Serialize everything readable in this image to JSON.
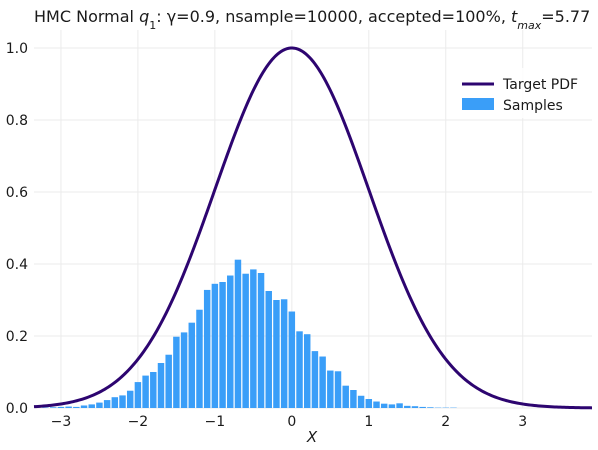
{
  "chart_data": {
    "type": "bar",
    "title": {
      "prefix": "HMC Normal ",
      "q_base": "q",
      "q_sub": "1",
      "mid": ": γ=0.9, nsample=10000, accepted=100%, ",
      "t_base": "t",
      "t_sub": "max",
      "suffix": "=5.77"
    },
    "xlabel": "X",
    "ylabel": "",
    "xlim": [
      -3.35,
      3.9
    ],
    "ylim": [
      0,
      1.05
    ],
    "xticks": [
      -3,
      -2,
      -1,
      0,
      1,
      2,
      3
    ],
    "xtick_labels": [
      "−3",
      "−2",
      "−1",
      "0",
      "1",
      "2",
      "3"
    ],
    "yticks": [
      0.0,
      0.2,
      0.4,
      0.6,
      0.8,
      1.0
    ],
    "ytick_labels": [
      "0.0",
      "0.2",
      "0.4",
      "0.6",
      "0.8",
      "1.0"
    ],
    "grid": true,
    "legend_position": "top-right",
    "series": [
      {
        "name": "Target PDF",
        "kind": "line",
        "color": "#2d0570",
        "formula": "exp(-x^2/2)",
        "x_range": [
          -3.35,
          3.9
        ]
      },
      {
        "name": "Samples",
        "kind": "bar",
        "color": "#3a9ef8",
        "bin_width": 0.1,
        "bin_centers": [
          -3.2,
          -3.1,
          -3.0,
          -2.9,
          -2.8,
          -2.7,
          -2.6,
          -2.5,
          -2.4,
          -2.3,
          -2.2,
          -2.1,
          -2.0,
          -1.9,
          -1.8,
          -1.7,
          -1.6,
          -1.5,
          -1.4,
          -1.3,
          -1.2,
          -1.1,
          -1.0,
          -0.9,
          -0.8,
          -0.7,
          -0.6,
          -0.5,
          -0.4,
          -0.3,
          -0.2,
          -0.1,
          0.0,
          0.1,
          0.2,
          0.3,
          0.4,
          0.5,
          0.6,
          0.7,
          0.8,
          0.9,
          1.0,
          1.1,
          1.2,
          1.3,
          1.4,
          1.5,
          1.6,
          1.7,
          1.8,
          1.9,
          2.0,
          2.1,
          2.2,
          2.3,
          2.4,
          2.5,
          2.6,
          2.7,
          2.8,
          2.9,
          3.0,
          3.1
        ],
        "values": [
          0.001,
          0.002,
          0.003,
          0.004,
          0.003,
          0.007,
          0.01,
          0.015,
          0.022,
          0.03,
          0.035,
          0.048,
          0.072,
          0.09,
          0.1,
          0.125,
          0.148,
          0.198,
          0.21,
          0.237,
          0.273,
          0.328,
          0.345,
          0.35,
          0.368,
          0.412,
          0.373,
          0.385,
          0.375,
          0.325,
          0.3,
          0.302,
          0.268,
          0.213,
          0.205,
          0.158,
          0.143,
          0.104,
          0.102,
          0.062,
          0.05,
          0.034,
          0.025,
          0.018,
          0.012,
          0.01,
          0.013,
          0.006,
          0.005,
          0.003,
          0.002,
          0.001,
          0.001,
          0.001,
          0.0,
          0.0,
          0.0,
          0.0,
          0.0,
          0.0,
          0.0,
          0.0,
          0.0,
          0.0
        ]
      }
    ]
  }
}
